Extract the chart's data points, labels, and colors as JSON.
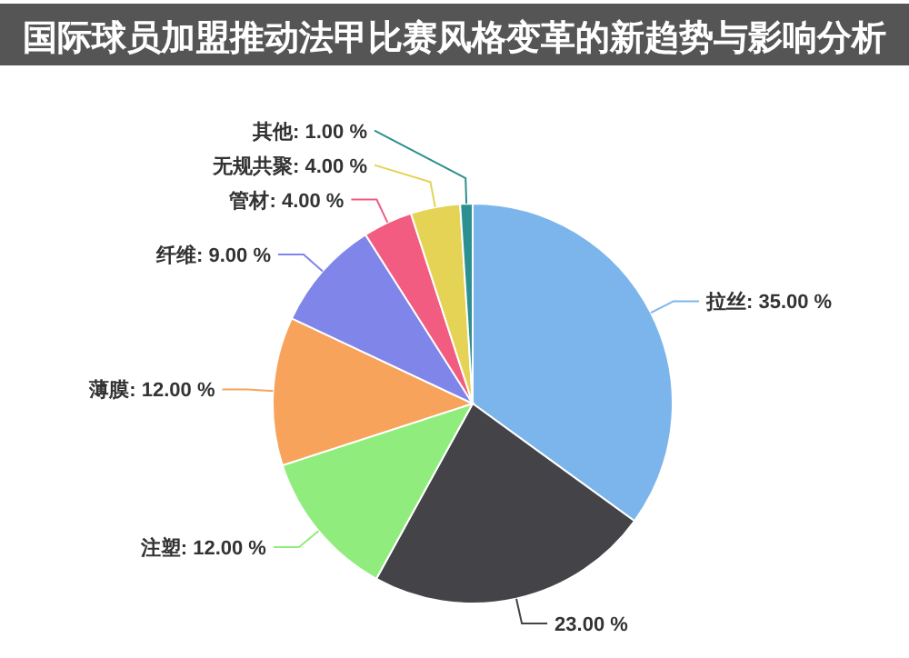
{
  "chart_data": {
    "type": "pie",
    "title": "国际球员加盟推动法甲比赛风格变革的新趋势与影响分析",
    "categories": [
      "拉丝",
      null,
      "注塑",
      "薄膜",
      "纤维",
      "管材",
      "无规共聚",
      "其他"
    ],
    "values": [
      35,
      23,
      12,
      12,
      9,
      4,
      4,
      1
    ],
    "value_labels": [
      "35.00 %",
      "23.00 %",
      "12.00 %",
      "12.00 %",
      "9.00 %",
      "4.00 %",
      "4.00 %",
      "1.00 %"
    ],
    "colors": [
      "#7cb5ec",
      "#434348",
      "#90ed7d",
      "#f7a35c",
      "#8085e9",
      "#f15c80",
      "#e4d354",
      "#2b908f"
    ],
    "legend": false
  }
}
